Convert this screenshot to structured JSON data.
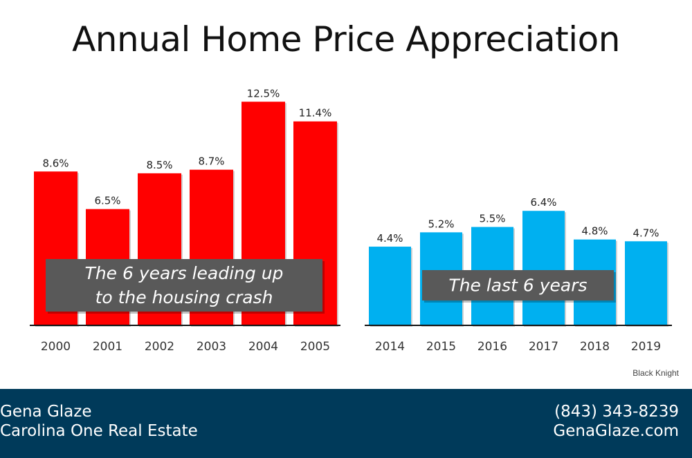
{
  "page_title": "Annual Home Price Appreciation",
  "chart_data": [
    {
      "type": "bar",
      "title": "Annual Home Price Appreciation",
      "categories": [
        "2000",
        "2001",
        "2002",
        "2003",
        "2004",
        "2005"
      ],
      "values": [
        8.6,
        6.5,
        8.5,
        8.7,
        12.5,
        11.4
      ],
      "value_labels": [
        "8.6%",
        "6.5%",
        "8.5%",
        "8.7%",
        "12.5%",
        "11.4%"
      ],
      "color": "#ff0000",
      "annotation_lines": [
        "The 6 years leading up",
        "to the housing crash"
      ],
      "ylim": [
        0,
        13
      ]
    },
    {
      "type": "bar",
      "title": "Annual Home Price Appreciation",
      "categories": [
        "2014",
        "2015",
        "2016",
        "2017",
        "2018",
        "2019"
      ],
      "values": [
        4.4,
        5.2,
        5.5,
        6.4,
        4.8,
        4.7
      ],
      "value_labels": [
        "4.4%",
        "5.2%",
        "5.5%",
        "6.4%",
        "4.8%",
        "4.7%"
      ],
      "color": "#00b0f0",
      "annotation_lines": [
        "The last 6 years"
      ],
      "ylim": [
        0,
        13
      ]
    }
  ],
  "source": "Black Knight",
  "footer": {
    "name": "Gena Glaze",
    "company": "Carolina One Real Estate",
    "phone": "(843) 343-8239",
    "website": "GenaGlaze.com"
  },
  "colors": {
    "footer_bg": "#003a5a",
    "annotation_bg": "#595959"
  }
}
